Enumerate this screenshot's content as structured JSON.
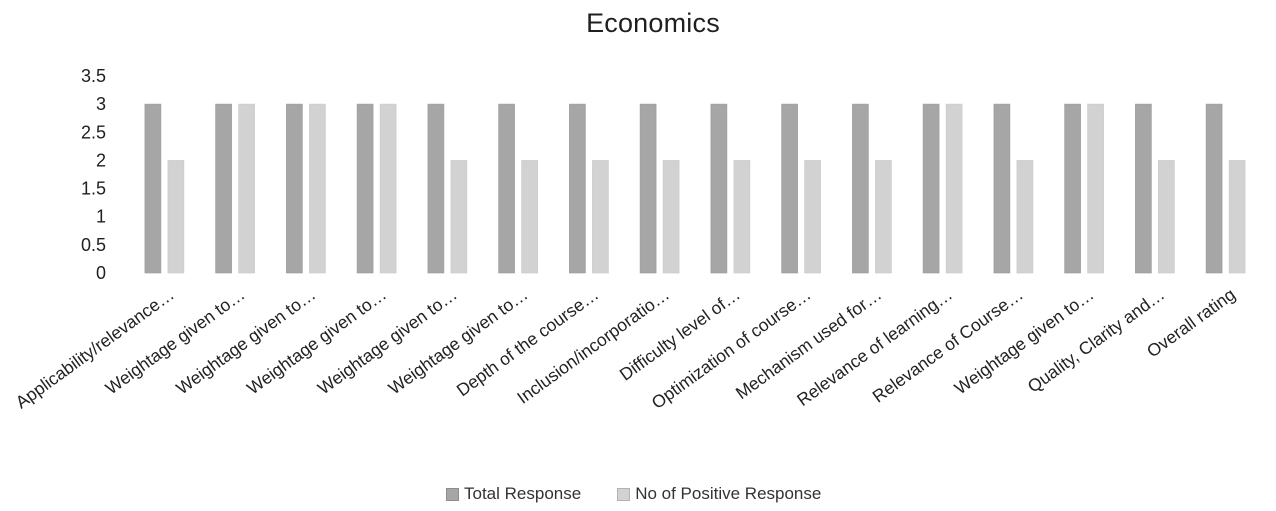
{
  "chart_data": {
    "type": "bar",
    "title": "Economics",
    "categories": [
      "Applicability/relevance…",
      "Weightage given to…",
      "Weightage given to…",
      "Weightage given to…",
      "Weightage given to…",
      "Weightage given to…",
      "Depth of the course…",
      "Inclusion/incorporatio…",
      "Difficulty level of…",
      "Optimization of course…",
      "Mechanism used for…",
      "Relevance of learning…",
      "Relevance of Course…",
      "Weightage given to…",
      "Quality, Clarity and…",
      "Overall rating"
    ],
    "series": [
      {
        "name": "Total Response",
        "color": "#a6a6a6",
        "values": [
          3,
          3,
          3,
          3,
          3,
          3,
          3,
          3,
          3,
          3,
          3,
          3,
          3,
          3,
          3,
          3
        ]
      },
      {
        "name": "No of Positive Response",
        "color": "#d2d2d2",
        "values": [
          2,
          3,
          3,
          3,
          2,
          2,
          2,
          2,
          2,
          2,
          2,
          3,
          2,
          3,
          2,
          2
        ]
      }
    ],
    "ylim": [
      0,
      3.5
    ],
    "yticks": [
      "0",
      "0.5",
      "1",
      "1.5",
      "2",
      "2.5",
      "3",
      "3.5"
    ],
    "grid": false,
    "legend_position": "bottom"
  }
}
